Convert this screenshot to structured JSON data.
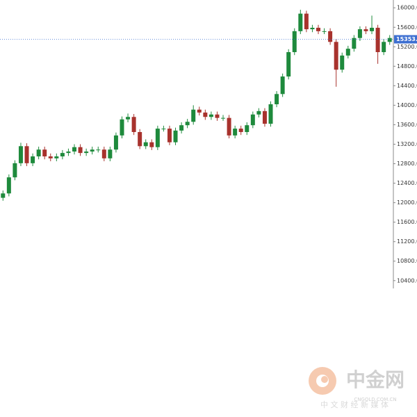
{
  "chart_data": {
    "type": "candlestick",
    "open": [
      12100,
      12190,
      12520,
      12810,
      13160,
      12810,
      12950,
      13090,
      12950,
      12910,
      12950,
      13020,
      13050,
      13140,
      13020,
      13050,
      13090,
      13090,
      12910,
      13090,
      13380,
      13710,
      13760,
      13450,
      13160,
      13240,
      13140,
      13520,
      13520,
      13240,
      13480,
      13590,
      13660,
      13910,
      13850,
      13760,
      13810,
      13740,
      13740,
      13380,
      13520,
      13450,
      13590,
      13810,
      13880,
      13620,
      14020,
      14230,
      14590,
      15090,
      15520,
      15880,
      15560,
      15590,
      15520,
      15520,
      15300,
      14730,
      15020,
      15160,
      15380,
      15560,
      15520,
      15590,
      15090,
      15300
    ],
    "high": [
      12250,
      12580,
      12870,
      13230,
      13220,
      13010,
      13150,
      13150,
      13010,
      13010,
      13080,
      13110,
      13200,
      13200,
      13110,
      13150,
      13150,
      13150,
      13150,
      13440,
      13770,
      13830,
      13820,
      13510,
      13300,
      13300,
      13580,
      13580,
      13580,
      13540,
      13650,
      13720,
      14000,
      13970,
      13910,
      13870,
      13870,
      13800,
      13800,
      13580,
      13580,
      13650,
      13870,
      13940,
      13940,
      14080,
      14290,
      14650,
      15150,
      15580,
      15960,
      15940,
      15650,
      15650,
      15580,
      15580,
      15360,
      15080,
      15220,
      15440,
      15620,
      15620,
      15840,
      15650,
      15360,
      15440
    ],
    "low": [
      12040,
      12130,
      12460,
      12750,
      12750,
      12750,
      12890,
      12890,
      12850,
      12850,
      12890,
      12960,
      12990,
      12960,
      12960,
      12990,
      13030,
      12850,
      12850,
      13030,
      13320,
      13650,
      13390,
      13100,
      13100,
      13080,
      13080,
      13460,
      13180,
      13180,
      13420,
      13530,
      13600,
      13790,
      13700,
      13700,
      13680,
      13680,
      13320,
      13320,
      13390,
      13390,
      13530,
      13750,
      13560,
      13560,
      13960,
      14170,
      14530,
      15030,
      15460,
      15500,
      15500,
      15460,
      15460,
      15240,
      14380,
      14670,
      14960,
      15100,
      15320,
      15460,
      15460,
      14850,
      15030,
      15240
    ],
    "close": [
      12190,
      12520,
      12810,
      13160,
      12810,
      12950,
      13090,
      12950,
      12910,
      12950,
      13020,
      13050,
      13140,
      13020,
      13050,
      13090,
      13090,
      12910,
      13090,
      13380,
      13710,
      13760,
      13450,
      13160,
      13240,
      13140,
      13520,
      13520,
      13240,
      13480,
      13590,
      13660,
      13910,
      13850,
      13760,
      13810,
      13740,
      13740,
      13380,
      13520,
      13450,
      13590,
      13810,
      13880,
      13620,
      14020,
      14230,
      14590,
      15090,
      15520,
      15880,
      15560,
      15590,
      15520,
      15520,
      15300,
      14730,
      15020,
      15160,
      15380,
      15560,
      15520,
      15590,
      15090,
      15300,
      15380
    ],
    "up_color": "#1e8a3c",
    "down_color": "#a8322d",
    "ylim": [
      10240,
      16160
    ],
    "yticks": [
      {
        "value": 10400,
        "label": "10400.0"
      },
      {
        "value": 10800,
        "label": "10800.0"
      },
      {
        "value": 11200,
        "label": "11200.0"
      },
      {
        "value": 11600,
        "label": "11600.0"
      },
      {
        "value": 12000,
        "label": "12000.0"
      },
      {
        "value": 12400,
        "label": "12400.0"
      },
      {
        "value": 12800,
        "label": "12800.0"
      },
      {
        "value": 13200,
        "label": "13200.0"
      },
      {
        "value": 13600,
        "label": "13600.0"
      },
      {
        "value": 14000,
        "label": "14000.0"
      },
      {
        "value": 14400,
        "label": "14400.0"
      },
      {
        "value": 14800,
        "label": "14800.0"
      },
      {
        "value": 15200,
        "label": "15200.0"
      },
      {
        "value": 15600,
        "label": "15600.0"
      },
      {
        "value": 16000,
        "label": "16000.0"
      }
    ],
    "last_price": {
      "value": 15353.6,
      "label": "15353.6",
      "color": "#3d6fd1"
    }
  },
  "watermark": {
    "brand": "中金网",
    "domain": "CNGOLD.COM.CN",
    "slogan": "中 文 财 经 新 媒 体"
  }
}
